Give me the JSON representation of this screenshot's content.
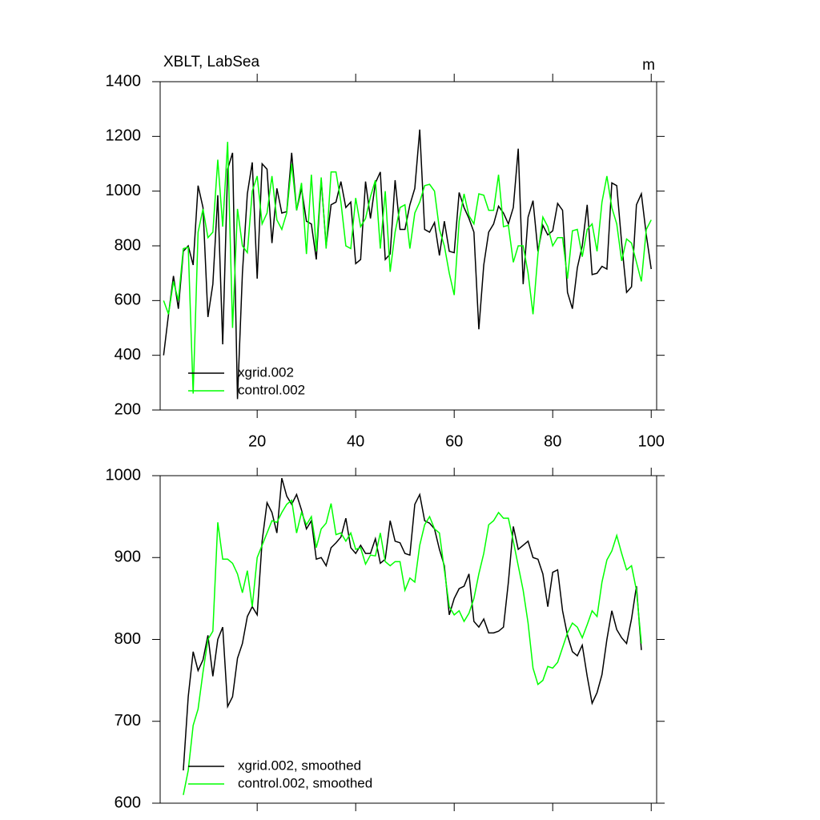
{
  "chart_data": [
    {
      "type": "line",
      "title": "XBLT, LabSea",
      "units": "m",
      "x": [
        1,
        2,
        3,
        4,
        5,
        6,
        7,
        8,
        9,
        10,
        11,
        12,
        13,
        14,
        15,
        16,
        17,
        18,
        19,
        20,
        21,
        22,
        23,
        24,
        25,
        26,
        27,
        28,
        29,
        30,
        31,
        32,
        33,
        34,
        35,
        36,
        37,
        38,
        39,
        40,
        41,
        42,
        43,
        44,
        45,
        46,
        47,
        48,
        49,
        50,
        51,
        52,
        53,
        54,
        55,
        56,
        57,
        58,
        59,
        60,
        61,
        62,
        63,
        64,
        65,
        66,
        67,
        68,
        69,
        70,
        71,
        72,
        73,
        74,
        75,
        76,
        77,
        78,
        79,
        80,
        81,
        82,
        83,
        84,
        85,
        86,
        87,
        88,
        89,
        90,
        91,
        92,
        93,
        94,
        95,
        96,
        97,
        98,
        99,
        100
      ],
      "series": [
        {
          "name": "xgrid.002",
          "color": "#000000",
          "values": [
            400,
            550,
            690,
            570,
            780,
            800,
            730,
            1020,
            940,
            540,
            660,
            985,
            440,
            1080,
            1140,
            240,
            700,
            990,
            1105,
            680,
            1100,
            1080,
            810,
            1010,
            920,
            925,
            1140,
            930,
            1010,
            890,
            880,
            750,
            1040,
            800,
            950,
            960,
            1035,
            940,
            960,
            735,
            750,
            1035,
            900,
            1030,
            1070,
            750,
            770,
            1040,
            860,
            860,
            950,
            1010,
            1225,
            860,
            850,
            885,
            765,
            890,
            780,
            775,
            995,
            940,
            900,
            850,
            495,
            730,
            850,
            880,
            945,
            920,
            880,
            940,
            1155,
            660,
            905,
            965,
            780,
            875,
            840,
            855,
            955,
            930,
            630,
            570,
            720,
            800,
            950,
            695,
            700,
            725,
            715,
            1030,
            1020,
            810,
            630,
            650,
            950,
            990,
            840,
            715
          ]
        },
        {
          "name": "control.002",
          "color": "#00ff00",
          "values": [
            600,
            550,
            670,
            600,
            790,
            795,
            260,
            850,
            935,
            830,
            850,
            1115,
            870,
            1180,
            500,
            935,
            800,
            775,
            1000,
            1055,
            880,
            920,
            1055,
            895,
            860,
            920,
            1100,
            930,
            1030,
            770,
            1060,
            780,
            1050,
            790,
            1070,
            1070,
            960,
            800,
            790,
            975,
            870,
            900,
            980,
            1040,
            790,
            1000,
            705,
            850,
            940,
            950,
            790,
            920,
            960,
            1020,
            1025,
            1000,
            860,
            800,
            700,
            620,
            890,
            990,
            910,
            880,
            990,
            985,
            930,
            930,
            1060,
            870,
            875,
            740,
            800,
            800,
            700,
            550,
            770,
            905,
            870,
            800,
            830,
            830,
            680,
            855,
            860,
            760,
            860,
            880,
            780,
            960,
            1055,
            940,
            880,
            745,
            825,
            810,
            740,
            670,
            860,
            895
          ]
        }
      ],
      "xlim": [
        0.3,
        101.1
      ],
      "xticks": [
        20,
        40,
        60,
        80,
        100
      ],
      "ylim": [
        200,
        1400
      ],
      "yticks": [
        200,
        400,
        600,
        800,
        1000,
        1200,
        1400
      ],
      "legend": "lower left"
    },
    {
      "type": "line",
      "x": [
        5,
        6,
        7,
        8,
        9,
        10,
        11,
        12,
        13,
        14,
        15,
        16,
        17,
        18,
        19,
        20,
        21,
        22,
        23,
        24,
        25,
        26,
        27,
        28,
        29,
        30,
        31,
        32,
        33,
        34,
        35,
        36,
        37,
        38,
        39,
        40,
        41,
        42,
        43,
        44,
        45,
        46,
        47,
        48,
        49,
        50,
        51,
        52,
        53,
        54,
        55,
        56,
        57,
        58,
        59,
        60,
        61,
        62,
        63,
        64,
        65,
        66,
        67,
        68,
        69,
        70,
        71,
        72,
        73,
        74,
        75,
        76,
        77,
        78,
        79,
        80,
        81,
        82,
        83,
        84,
        85,
        86,
        87,
        88,
        89,
        90,
        91,
        92,
        93,
        94,
        95,
        96,
        97,
        98
      ],
      "series": [
        {
          "name": "xgrid.002, smoothed",
          "color": "#000000",
          "values": [
            640,
            730,
            785,
            762,
            775,
            805,
            755,
            800,
            815,
            718,
            730,
            777,
            795,
            828,
            840,
            830,
            920,
            967,
            955,
            930,
            997,
            975,
            965,
            977,
            958,
            935,
            945,
            898,
            900,
            890,
            912,
            918,
            925,
            948,
            912,
            905,
            915,
            905,
            905,
            923,
            893,
            898,
            945,
            920,
            918,
            905,
            903,
            965,
            977,
            945,
            942,
            935,
            910,
            890,
            830,
            850,
            862,
            865,
            880,
            822,
            815,
            825,
            808,
            808,
            810,
            815,
            870,
            938,
            910,
            915,
            920,
            900,
            898,
            880,
            840,
            882,
            885,
            835,
            805,
            785,
            780,
            793,
            755,
            722,
            735,
            757,
            800,
            835,
            812,
            802,
            795,
            825,
            865,
            787
          ]
        },
        {
          "name": "control.002, smoothed",
          "color": "#00ff00",
          "values": [
            610,
            640,
            695,
            715,
            760,
            800,
            810,
            943,
            898,
            898,
            893,
            880,
            857,
            884,
            840,
            900,
            915,
            930,
            945,
            943,
            955,
            965,
            970,
            930,
            955,
            940,
            950,
            912,
            935,
            942,
            966,
            928,
            930,
            920,
            930,
            910,
            912,
            892,
            903,
            902,
            930,
            895,
            890,
            895,
            895,
            860,
            875,
            870,
            915,
            940,
            950,
            935,
            930,
            885,
            840,
            830,
            835,
            822,
            832,
            850,
            880,
            905,
            940,
            945,
            955,
            948,
            948,
            920,
            890,
            860,
            820,
            765,
            745,
            750,
            767,
            765,
            772,
            790,
            808,
            820,
            815,
            802,
            818,
            835,
            828,
            870,
            897,
            908,
            927,
            905,
            885,
            890,
            860,
            795
          ]
        }
      ],
      "xlim": [
        0.3,
        101.1
      ],
      "xticks": [
        20,
        40,
        60,
        80,
        100
      ],
      "ylim": [
        600,
        1000
      ],
      "yticks": [
        600,
        700,
        800,
        900,
        1000
      ],
      "legend": "lower left"
    }
  ]
}
